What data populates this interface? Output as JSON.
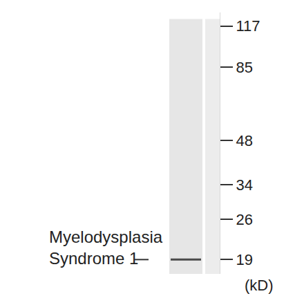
{
  "chart_data": {
    "type": "western_blot",
    "log": "y",
    "ylim": [
      17,
      130
    ],
    "yticks": [
      19,
      26,
      34,
      48,
      85,
      117
    ],
    "y_label": "(kD)",
    "lanes": [
      1,
      2
    ],
    "bands": [
      {
        "lane": 1,
        "value": 19,
        "label": [
          "Myelodysplasia",
          "Syndrome 1"
        ]
      }
    ]
  }
}
